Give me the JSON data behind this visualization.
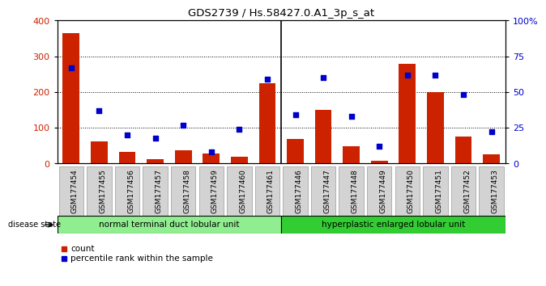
{
  "title": "GDS2739 / Hs.58427.0.A1_3p_s_at",
  "samples": [
    "GSM177454",
    "GSM177455",
    "GSM177456",
    "GSM177457",
    "GSM177458",
    "GSM177459",
    "GSM177460",
    "GSM177461",
    "GSM177446",
    "GSM177447",
    "GSM177448",
    "GSM177449",
    "GSM177450",
    "GSM177451",
    "GSM177452",
    "GSM177453"
  ],
  "counts": [
    365,
    62,
    33,
    13,
    37,
    28,
    18,
    225,
    68,
    150,
    48,
    7,
    280,
    200,
    75,
    25
  ],
  "percentiles": [
    67,
    37,
    20,
    18,
    27,
    8,
    24,
    59,
    34,
    60,
    33,
    12,
    62,
    62,
    48,
    22
  ],
  "group1_label": "normal terminal duct lobular unit",
  "group2_label": "hyperplastic enlarged lobular unit",
  "group1_count": 8,
  "group2_count": 8,
  "disease_state_label": "disease state",
  "bar_color": "#cc2200",
  "dot_color": "#0000cc",
  "ylim_left": [
    0,
    400
  ],
  "ylim_right": [
    0,
    100
  ],
  "yticks_left": [
    0,
    100,
    200,
    300,
    400
  ],
  "yticks_right": [
    0,
    25,
    50,
    75,
    100
  ],
  "yticklabels_right": [
    "0",
    "25",
    "50",
    "75",
    "100%"
  ],
  "bg_color": "#ffffff",
  "group1_color": "#90ee90",
  "group2_color": "#32cd32",
  "legend_count_label": "count",
  "legend_pct_label": "percentile rank within the sample"
}
